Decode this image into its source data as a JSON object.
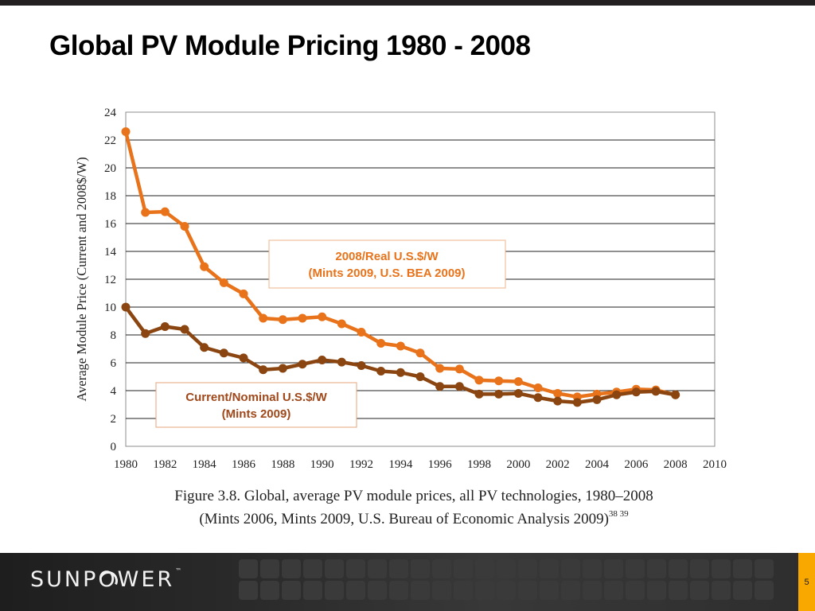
{
  "slide": {
    "title": "Global PV Module Pricing 1980 - 2008",
    "page_number": "5",
    "logo": {
      "text_pre": "SUNP",
      "text_post": "WER",
      "trademark": "™"
    },
    "caption_line1": "Figure 3.8. Global, average PV module prices, all PV technologies, 1980–2008",
    "caption_line2": "(Mints 2006, Mints 2009, U.S. Bureau of Economic Analysis 2009)",
    "caption_refs": "38 39",
    "colors": {
      "accent": "#f9a800",
      "real_series": "#e8731a",
      "nominal_series": "#8a4510",
      "footer": "#2a2a2a"
    }
  },
  "chart_data": {
    "type": "line",
    "ylabel": "Average Module Price (Current and 2008$/W)",
    "xlabel": "",
    "xlim": [
      1980,
      2010
    ],
    "ylim": [
      0,
      24
    ],
    "x_ticks": [
      1980,
      1982,
      1984,
      1986,
      1988,
      1990,
      1992,
      1994,
      1996,
      1998,
      2000,
      2002,
      2004,
      2006,
      2008,
      2010
    ],
    "y_ticks": [
      0,
      2,
      4,
      6,
      8,
      10,
      12,
      14,
      16,
      18,
      20,
      22,
      24
    ],
    "grid": "horizontal",
    "x": [
      1980,
      1981,
      1982,
      1983,
      1984,
      1985,
      1986,
      1987,
      1988,
      1989,
      1990,
      1991,
      1992,
      1993,
      1994,
      1995,
      1996,
      1997,
      1998,
      1999,
      2000,
      2001,
      2002,
      2003,
      2004,
      2005,
      2006,
      2007,
      2008
    ],
    "series": [
      {
        "values": [
          22.6,
          16.8,
          16.85,
          15.8,
          12.9,
          11.75,
          10.95,
          9.2,
          9.1,
          9.2,
          9.3,
          8.8,
          8.2,
          7.4,
          7.2,
          6.7,
          5.6,
          5.55,
          4.75,
          4.7,
          4.65,
          4.2,
          3.8,
          3.55,
          3.75,
          3.9,
          4.1,
          4.05,
          3.7
        ],
        "color": "#e8731a"
      },
      {
        "values": [
          10.0,
          8.1,
          8.6,
          8.4,
          7.1,
          6.7,
          6.35,
          5.5,
          5.6,
          5.9,
          6.2,
          6.05,
          5.8,
          5.4,
          5.3,
          5.0,
          4.3,
          4.3,
          3.75,
          3.75,
          3.8,
          3.5,
          3.25,
          3.15,
          3.35,
          3.7,
          3.9,
          3.95,
          3.7
        ],
        "color": "#8a4510"
      }
    ],
    "annotations": [
      {
        "line1": "2008/Real U.S.$/W",
        "line2": "(Mints 2009, U.S. BEA 2009)",
        "color": "#e8731a"
      },
      {
        "line1": "Current/Nominal U.S.$/W",
        "line2": "(Mints 2009)",
        "color": "#a0481a"
      }
    ]
  }
}
